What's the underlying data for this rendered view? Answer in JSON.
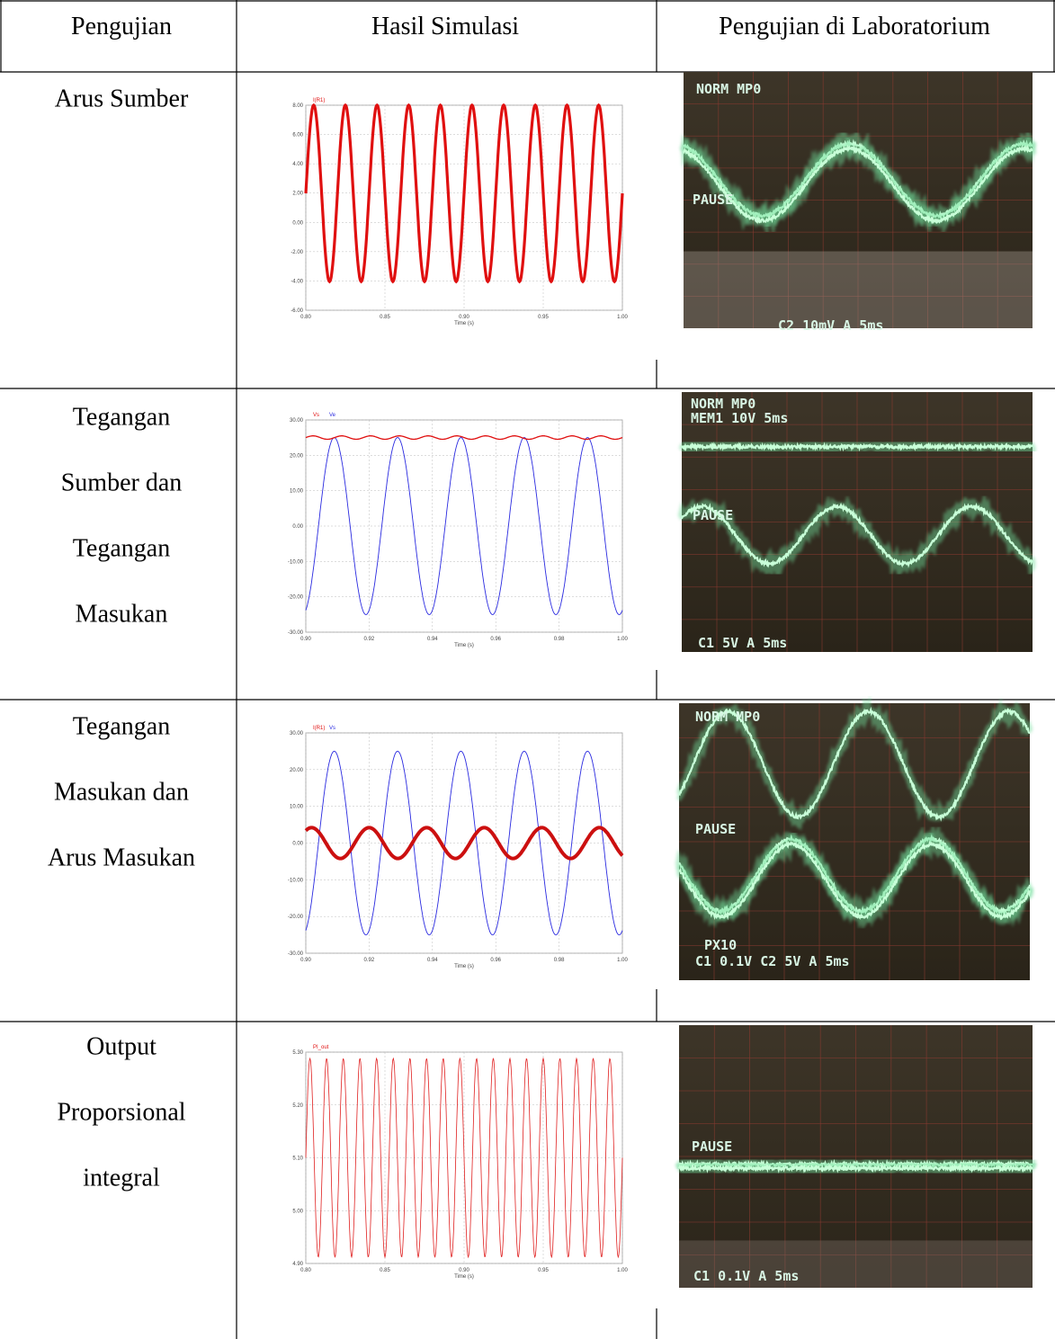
{
  "header": [
    "Pengujian",
    "Hasil Simulasi",
    "Pengujian di Laboratorium"
  ],
  "rows": [
    {
      "label": [
        "Arus Sumber"
      ],
      "simulation": {
        "legend": [
          "I(R1)"
        ],
        "yticks": [
          "8.00",
          "6.00",
          "4.00",
          "2.00",
          "0.00",
          "-2.00",
          "-4.00",
          "-6.00"
        ],
        "xticks": [
          "0.80",
          "0.85",
          "0.90",
          "0.95",
          "1.00"
        ],
        "xlabel": "Time (s)"
      },
      "scope": [
        "NORM MP0",
        "PAUSE",
        "C2 10mV A 5ms"
      ]
    },
    {
      "label": [
        "Tegangan",
        "Sumber dan",
        "Tegangan",
        "Masukan"
      ],
      "simulation": {
        "legend": [
          "Vs",
          "Ve"
        ],
        "yticks": [
          "30.00",
          "20.00",
          "10.00",
          "0.00",
          "-10.00",
          "-20.00",
          "-30.00"
        ],
        "xticks": [
          "0.90",
          "0.92",
          "0.94",
          "0.96",
          "0.98",
          "1.00"
        ],
        "xlabel": "Time (s)"
      },
      "scope": [
        "NORM MP0",
        "MEM1 10V 5ms",
        "PAUSE",
        "C1 5V A 5ms"
      ]
    },
    {
      "label": [
        "Tegangan",
        "Masukan dan",
        "Arus Masukan"
      ],
      "simulation": {
        "legend": [
          "I(R1)",
          "Vs"
        ],
        "yticks": [
          "30.00",
          "20.00",
          "10.00",
          "0.00",
          "-10.00",
          "-20.00",
          "-30.00"
        ],
        "xticks": [
          "0.90",
          "0.92",
          "0.94",
          "0.96",
          "0.98",
          "1.00"
        ],
        "xlabel": "Time (s)"
      },
      "scope": [
        "NORM MP0",
        "PAUSE",
        "PX10",
        "C1 0.1V C2 5V A 5ms"
      ]
    },
    {
      "label": [
        "Output",
        "Proporsional",
        "integral"
      ],
      "simulation": {
        "legend": [
          "PI_out"
        ],
        "yticks": [
          "5.30",
          "5.20",
          "5.10",
          "5.00",
          "4.90"
        ],
        "xticks": [
          "0.80",
          "0.85",
          "0.90",
          "0.95",
          "1.00"
        ],
        "xlabel": "Time (s)"
      },
      "scope": [
        "PAUSE",
        "C1 0.1V A 5ms"
      ]
    }
  ]
}
